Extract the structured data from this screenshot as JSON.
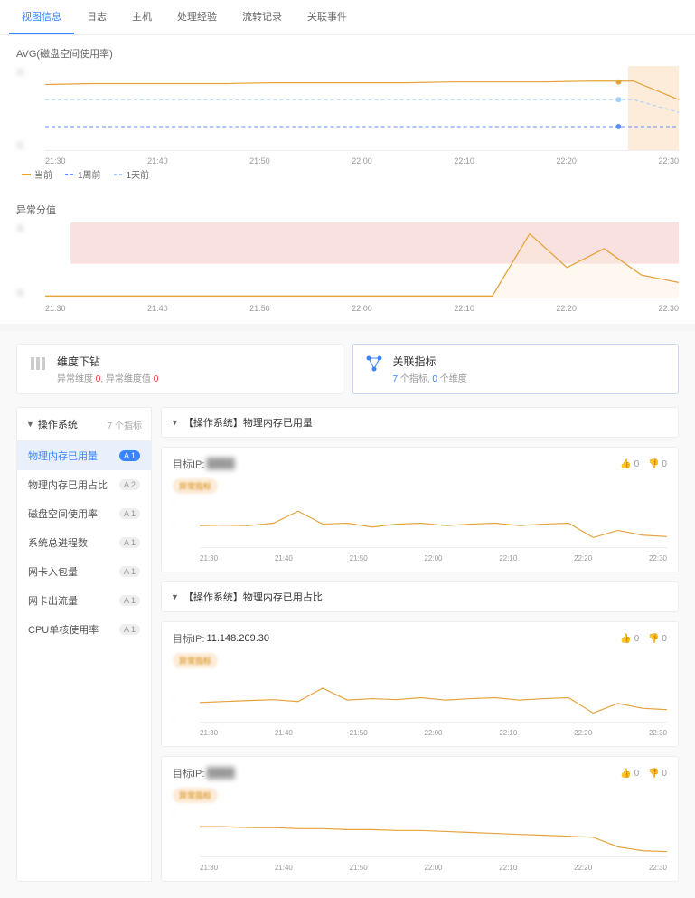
{
  "tabs": [
    {
      "label": "视图信息",
      "active": true
    },
    {
      "label": "日志"
    },
    {
      "label": "主机"
    },
    {
      "label": "处理经验"
    },
    {
      "label": "流转记录"
    },
    {
      "label": "关联事件"
    }
  ],
  "chart1": {
    "title": "AVG(磁盘空间使用率)",
    "xticks": [
      "21:30",
      "21:40",
      "21:50",
      "22:00",
      "22:10",
      "22:20",
      "22:30"
    ],
    "yticks_blur": [
      "高",
      "低"
    ],
    "legend": [
      {
        "label": "当前",
        "color": "#e6a23c",
        "dash": ""
      },
      {
        "label": "1周前",
        "color": "#5b8ff9",
        "dash": "4,3"
      },
      {
        "label": "1天前",
        "color": "#a0cfff",
        "dash": "4,3"
      }
    ],
    "series": [
      {
        "color": "#e6a23c",
        "width": 1.2,
        "points": [
          22,
          21,
          21,
          21,
          21,
          20,
          20,
          20,
          20,
          19,
          19,
          19,
          18,
          18,
          40
        ]
      },
      {
        "color": "#5b8ff9",
        "width": 1,
        "dash": "4,3",
        "points": [
          72,
          72,
          72,
          72,
          72,
          72,
          72,
          72,
          72,
          72,
          72,
          72,
          72,
          72,
          72
        ]
      },
      {
        "color": "#a0cfff",
        "width": 1,
        "dash": "4,3",
        "points": [
          40,
          40,
          40,
          40,
          40,
          40,
          40,
          40,
          40,
          40,
          40,
          40,
          40,
          40,
          55
        ]
      }
    ],
    "markers": [
      {
        "x": 0.905,
        "values": [
          19,
          40,
          72
        ],
        "colors": [
          "#e6a23c",
          "#a0cfff",
          "#5b8ff9"
        ]
      }
    ],
    "shade": {
      "from": 0.92,
      "color": "#fdecd9"
    }
  },
  "chart2": {
    "title": "异常分值",
    "xticks": [
      "21:30",
      "21:40",
      "21:50",
      "22:00",
      "22:10",
      "22:20",
      "22:30"
    ],
    "yticks_blur": [
      "高",
      "",
      "低"
    ],
    "band": {
      "from": 0.04,
      "to": 0.55,
      "color": "#f9e1df"
    },
    "series": [
      {
        "color": "#e6a23c",
        "width": 1.3,
        "fill": "#fdecd960",
        "points": [
          98,
          98,
          98,
          98,
          98,
          98,
          98,
          98,
          98,
          98,
          98,
          98,
          98,
          15,
          60,
          35,
          70,
          80
        ]
      }
    ]
  },
  "info_cards": [
    {
      "icon": "drill",
      "title": "维度下钻",
      "sub_parts": [
        {
          "t": "异常维度 "
        },
        {
          "t": "0",
          "cls": "hl-red"
        },
        {
          "t": ", 异常维度值 "
        },
        {
          "t": "0",
          "cls": "hl-red"
        }
      ],
      "active": false
    },
    {
      "icon": "link",
      "title": "关联指标",
      "sub_parts": [
        {
          "t": "7",
          "cls": "hl-blue"
        },
        {
          "t": " 个指标, "
        },
        {
          "t": "0",
          "cls": "hl-blue"
        },
        {
          "t": " 个维度"
        }
      ],
      "active": true
    }
  ],
  "sidebar": {
    "header": {
      "label": "操作系统",
      "count": "7 个指标"
    },
    "items": [
      {
        "label": "物理内存已用量",
        "badge": "A 1",
        "active": true
      },
      {
        "label": "物理内存已用占比",
        "badge": "A 2"
      },
      {
        "label": "磁盘空间使用率",
        "badge": "A 1"
      },
      {
        "label": "系统总进程数",
        "badge": "A 1"
      },
      {
        "label": "网卡入包量",
        "badge": "A 1"
      },
      {
        "label": "网卡出流量",
        "badge": "A 1"
      },
      {
        "label": "CPU单核使用率",
        "badge": "A 1"
      }
    ]
  },
  "sections": [
    {
      "title": "【操作系统】物理内存已用量",
      "cards": [
        {
          "ip_label": "目标IP:",
          "ip": "████",
          "ip_blur": true,
          "pill": "异常指标",
          "up": 0,
          "down": 0,
          "xticks": [
            "21:30",
            "21:40",
            "21:50",
            "22:00",
            "22:10",
            "22:20",
            "22:30"
          ],
          "series": {
            "color": "#e6a23c",
            "points": [
              55,
              54,
              55,
              50,
              25,
              52,
              50,
              58,
              52,
              50,
              55,
              52,
              50,
              55,
              52,
              50,
              80,
              65,
              75,
              78
            ]
          }
        }
      ]
    },
    {
      "title": "【操作系统】物理内存已用占比",
      "cards": [
        {
          "ip_label": "目标IP:",
          "ip": "11.148.209.30",
          "ip_blur": false,
          "pill": "异常指标",
          "up": 0,
          "down": 0,
          "xticks": [
            "21:30",
            "21:40",
            "21:50",
            "22:00",
            "22:10",
            "22:20",
            "22:30"
          ],
          "series": {
            "color": "#e6a23c",
            "points": [
              60,
              58,
              56,
              54,
              58,
              30,
              55,
              52,
              54,
              50,
              55,
              52,
              50,
              55,
              52,
              50,
              82,
              62,
              72,
              75
            ]
          }
        },
        {
          "ip_label": "目标IP:",
          "ip": "████",
          "ip_blur": true,
          "pill": "异常指标",
          "up": 0,
          "down": 0,
          "xticks": [
            "21:30",
            "21:40",
            "21:50",
            "22:00",
            "22:10",
            "22:20",
            "22:30"
          ],
          "series": {
            "color": "#e6a23c",
            "points": [
              38,
              38,
              40,
              40,
              42,
              42,
              44,
              44,
              46,
              46,
              48,
              50,
              52,
              54,
              56,
              58,
              60,
              80,
              88,
              90
            ]
          }
        }
      ]
    }
  ],
  "misc": {
    "thumb_up": "👍",
    "thumb_down": "👎"
  }
}
